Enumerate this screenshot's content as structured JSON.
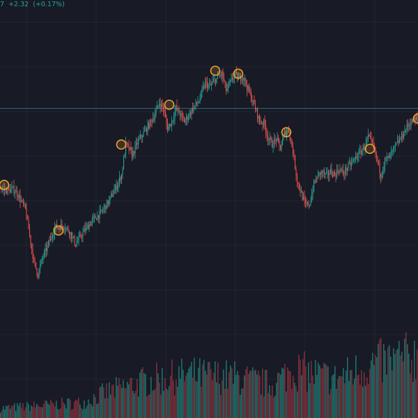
{
  "legend": {
    "last_value_fragment": "7",
    "change": "+2.32",
    "change_percent": "(+0.17%)"
  },
  "colors": {
    "background": "#181a25",
    "grid": "#222532",
    "up": "#26a69a",
    "down": "#ef5350",
    "volume_up": "#1f6f69",
    "volume_down": "#7a2f3a",
    "marker": "#f0a030",
    "price_line": "#2a6a78",
    "legend_text": "#26a69a"
  },
  "chart_data": {
    "type": "candlestick",
    "subtype": "price_with_volume",
    "grid": true,
    "price_line": 1290,
    "ylim": [
      900,
      1440
    ],
    "price_path": [
      {
        "x": 0,
        "y": 1180
      },
      {
        "x": 3,
        "y": 1176
      },
      {
        "x": 6,
        "y": 1178
      },
      {
        "x": 8,
        "y": 1173
      },
      {
        "x": 12,
        "y": 1150
      },
      {
        "x": 16,
        "y": 1078
      },
      {
        "x": 18,
        "y": 1060
      },
      {
        "x": 20,
        "y": 1082
      },
      {
        "x": 22,
        "y": 1095
      },
      {
        "x": 26,
        "y": 1125
      },
      {
        "x": 30,
        "y": 1128
      },
      {
        "x": 33,
        "y": 1120
      },
      {
        "x": 36,
        "y": 1102
      },
      {
        "x": 40,
        "y": 1120
      },
      {
        "x": 44,
        "y": 1135
      },
      {
        "x": 48,
        "y": 1145
      },
      {
        "x": 52,
        "y": 1162
      },
      {
        "x": 56,
        "y": 1185
      },
      {
        "x": 58,
        "y": 1198
      },
      {
        "x": 60,
        "y": 1240
      },
      {
        "x": 62,
        "y": 1232
      },
      {
        "x": 63,
        "y": 1225
      },
      {
        "x": 66,
        "y": 1245
      },
      {
        "x": 70,
        "y": 1262
      },
      {
        "x": 74,
        "y": 1282
      },
      {
        "x": 76,
        "y": 1298
      },
      {
        "x": 78,
        "y": 1290
      },
      {
        "x": 80,
        "y": 1262
      },
      {
        "x": 82,
        "y": 1272
      },
      {
        "x": 84,
        "y": 1290
      },
      {
        "x": 86,
        "y": 1282
      },
      {
        "x": 88,
        "y": 1272
      },
      {
        "x": 90,
        "y": 1280
      },
      {
        "x": 92,
        "y": 1290
      },
      {
        "x": 95,
        "y": 1300
      },
      {
        "x": 98,
        "y": 1325
      },
      {
        "x": 100,
        "y": 1320
      },
      {
        "x": 103,
        "y": 1330
      },
      {
        "x": 106,
        "y": 1338
      },
      {
        "x": 108,
        "y": 1315
      },
      {
        "x": 110,
        "y": 1325
      },
      {
        "x": 112,
        "y": 1338
      },
      {
        "x": 114,
        "y": 1330
      },
      {
        "x": 116,
        "y": 1335
      },
      {
        "x": 118,
        "y": 1320
      },
      {
        "x": 120,
        "y": 1305
      },
      {
        "x": 122,
        "y": 1290
      },
      {
        "x": 124,
        "y": 1272
      },
      {
        "x": 126,
        "y": 1270
      },
      {
        "x": 128,
        "y": 1250
      },
      {
        "x": 130,
        "y": 1240
      },
      {
        "x": 132,
        "y": 1248
      },
      {
        "x": 134,
        "y": 1235
      },
      {
        "x": 136,
        "y": 1255
      },
      {
        "x": 138,
        "y": 1260
      },
      {
        "x": 140,
        "y": 1230
      },
      {
        "x": 142,
        "y": 1190
      },
      {
        "x": 144,
        "y": 1172
      },
      {
        "x": 146,
        "y": 1155
      },
      {
        "x": 148,
        "y": 1158
      },
      {
        "x": 150,
        "y": 1185
      },
      {
        "x": 152,
        "y": 1198
      },
      {
        "x": 154,
        "y": 1202
      },
      {
        "x": 156,
        "y": 1196
      },
      {
        "x": 158,
        "y": 1203
      },
      {
        "x": 160,
        "y": 1198
      },
      {
        "x": 162,
        "y": 1206
      },
      {
        "x": 164,
        "y": 1200
      },
      {
        "x": 166,
        "y": 1208
      },
      {
        "x": 168,
        "y": 1214
      },
      {
        "x": 170,
        "y": 1222
      },
      {
        "x": 172,
        "y": 1228
      },
      {
        "x": 174,
        "y": 1236
      },
      {
        "x": 176,
        "y": 1250
      },
      {
        "x": 178,
        "y": 1240
      },
      {
        "x": 180,
        "y": 1222
      },
      {
        "x": 182,
        "y": 1198
      },
      {
        "x": 184,
        "y": 1218
      },
      {
        "x": 186,
        "y": 1222
      },
      {
        "x": 188,
        "y": 1232
      },
      {
        "x": 190,
        "y": 1242
      },
      {
        "x": 192,
        "y": 1250
      },
      {
        "x": 194,
        "y": 1262
      },
      {
        "x": 196,
        "y": 1270
      },
      {
        "x": 200,
        "y": 1276
      }
    ],
    "markers": [
      {
        "x": 2,
        "y": 1184
      },
      {
        "x": 28,
        "y": 1121
      },
      {
        "x": 58,
        "y": 1240
      },
      {
        "x": 81,
        "y": 1295
      },
      {
        "x": 103,
        "y": 1342
      },
      {
        "x": 114,
        "y": 1338
      },
      {
        "x": 137,
        "y": 1257
      },
      {
        "x": 177,
        "y": 1234
      },
      {
        "x": 200,
        "y": 1276
      }
    ],
    "volume_ylim": [
      0,
      100
    ],
    "volume_profile": [
      {
        "x": 0,
        "v": 10
      },
      {
        "x": 20,
        "v": 13
      },
      {
        "x": 40,
        "v": 16
      },
      {
        "x": 50,
        "v": 26
      },
      {
        "x": 70,
        "v": 38
      },
      {
        "x": 90,
        "v": 44
      },
      {
        "x": 110,
        "v": 42
      },
      {
        "x": 130,
        "v": 34
      },
      {
        "x": 140,
        "v": 50
      },
      {
        "x": 160,
        "v": 40
      },
      {
        "x": 180,
        "v": 56
      },
      {
        "x": 200,
        "v": 64
      }
    ]
  }
}
